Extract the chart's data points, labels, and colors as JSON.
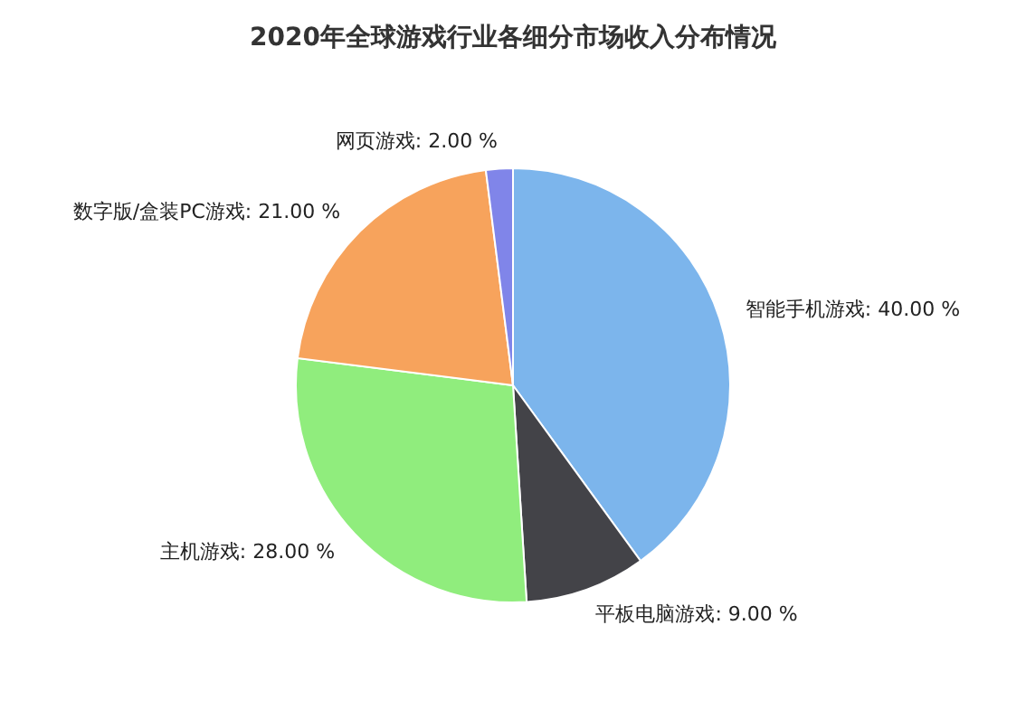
{
  "chart_data": {
    "type": "pie",
    "title": "2020年全球游戏行业各细分市场收入分布情况",
    "categories": [
      "智能手机游戏",
      "平板电脑游戏",
      "主机游戏",
      "数字版/盒装PC游戏",
      "网页游戏"
    ],
    "values": [
      40,
      9,
      28,
      21,
      2
    ],
    "value_labels": [
      "40.00 %",
      "9.00 %",
      "28.00 %",
      "21.00 %",
      "2.00 %"
    ],
    "colors": [
      "#7cb5ec",
      "#434348",
      "#90ed7d",
      "#f7a35c",
      "#8085e9"
    ],
    "legend": false
  }
}
